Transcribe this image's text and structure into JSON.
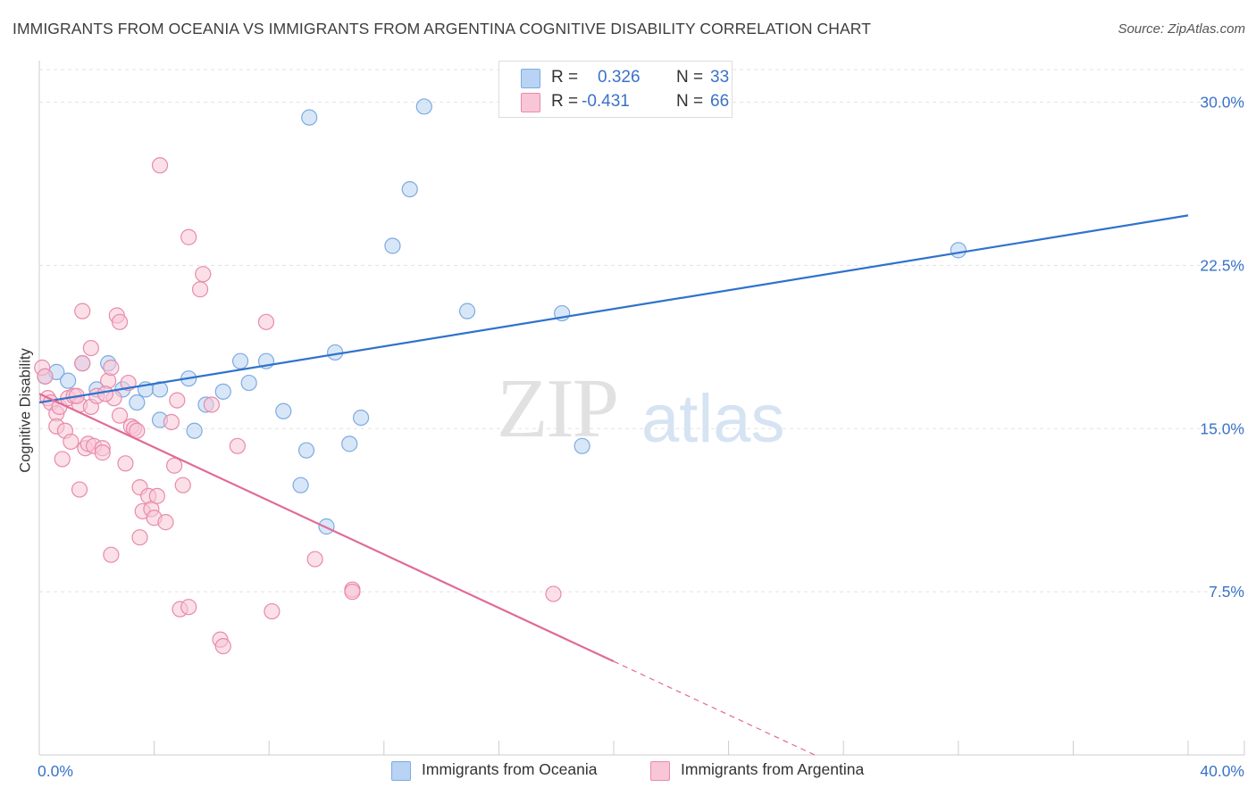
{
  "title": "IMMIGRANTS FROM OCEANIA VS IMMIGRANTS FROM ARGENTINA COGNITIVE DISABILITY CORRELATION CHART",
  "source": "Source: ZipAtlas.com",
  "watermark": {
    "zip": "ZIP",
    "atlas": "atlas"
  },
  "legend": {
    "r_label": "R =",
    "n_label": "N =",
    "rows": [
      {
        "r": "0.326",
        "n": "33",
        "color": "#b8d3f3",
        "border": "#7eaae0"
      },
      {
        "r": "-0.431",
        "n": "66",
        "color": "#f8c6d6",
        "border": "#e98aab"
      }
    ]
  },
  "bottom_legend": [
    {
      "label": "Immigrants from Oceania",
      "color": "#b8d3f3",
      "border": "#7eaae0"
    },
    {
      "label": "Immigrants from Argentina",
      "color": "#f8c6d6",
      "border": "#e98aab"
    }
  ],
  "chart_data": {
    "type": "scatter",
    "title": "IMMIGRANTS FROM OCEANIA VS IMMIGRANTS FROM ARGENTINA COGNITIVE DISABILITY CORRELATION CHART",
    "xlabel": "",
    "ylabel": "Cognitive Disability",
    "xlim": [
      0,
      40
    ],
    "ylim": [
      0,
      31.5
    ],
    "x_tick_labels": [
      "0.0%",
      "40.0%"
    ],
    "y_ticks": [
      7.5,
      15.0,
      22.5,
      30.0
    ],
    "y_tick_labels": [
      "7.5%",
      "15.0%",
      "22.5%",
      "30.0%"
    ],
    "grid": true,
    "legend_position": "top-center",
    "series": [
      {
        "name": "Immigrants from Oceania",
        "color": "#7eaae0",
        "fill": "#b8d3f3",
        "line_color": "#2f72cc",
        "trend": {
          "x": [
            0,
            40
          ],
          "y": [
            16.2,
            24.8
          ]
        },
        "points": [
          [
            0.2,
            17.4
          ],
          [
            0.6,
            17.6
          ],
          [
            1.0,
            17.2
          ],
          [
            1.5,
            18.0
          ],
          [
            2.0,
            16.8
          ],
          [
            2.4,
            18.0
          ],
          [
            2.9,
            16.8
          ],
          [
            3.4,
            16.2
          ],
          [
            3.7,
            16.8
          ],
          [
            4.2,
            16.8
          ],
          [
            4.2,
            15.4
          ],
          [
            5.2,
            17.3
          ],
          [
            5.4,
            14.9
          ],
          [
            5.8,
            16.1
          ],
          [
            6.4,
            16.7
          ],
          [
            7.0,
            18.1
          ],
          [
            7.3,
            17.1
          ],
          [
            7.9,
            18.1
          ],
          [
            8.5,
            15.8
          ],
          [
            9.1,
            12.4
          ],
          [
            9.4,
            29.3
          ],
          [
            9.3,
            14.0
          ],
          [
            10.0,
            10.5
          ],
          [
            10.3,
            18.5
          ],
          [
            10.8,
            14.3
          ],
          [
            11.2,
            15.5
          ],
          [
            12.3,
            23.4
          ],
          [
            12.9,
            26.0
          ],
          [
            13.4,
            29.8
          ],
          [
            14.9,
            20.4
          ],
          [
            18.2,
            20.3
          ],
          [
            18.9,
            14.2
          ],
          [
            32.0,
            23.2
          ]
        ]
      },
      {
        "name": "Immigrants from Argentina",
        "color": "#e98aab",
        "fill": "#f8c6d6",
        "line_color": "#e06a98",
        "trend": {
          "x": [
            0,
            20
          ],
          "y": [
            16.6,
            4.3
          ]
        },
        "trend_dashed": {
          "x": [
            20,
            27
          ],
          "y": [
            4.3,
            0.0
          ]
        },
        "points": [
          [
            0.1,
            17.8
          ],
          [
            0.2,
            17.4
          ],
          [
            0.3,
            16.4
          ],
          [
            0.4,
            16.2
          ],
          [
            0.6,
            15.7
          ],
          [
            0.6,
            15.1
          ],
          [
            0.7,
            16.0
          ],
          [
            0.8,
            13.6
          ],
          [
            0.9,
            14.9
          ],
          [
            1.0,
            16.4
          ],
          [
            1.1,
            14.4
          ],
          [
            1.2,
            16.5
          ],
          [
            1.4,
            16.1
          ],
          [
            1.4,
            12.2
          ],
          [
            1.5,
            18.0
          ],
          [
            1.5,
            20.4
          ],
          [
            1.6,
            14.1
          ],
          [
            1.7,
            14.3
          ],
          [
            1.8,
            16.0
          ],
          [
            1.8,
            18.7
          ],
          [
            1.9,
            14.2
          ],
          [
            2.0,
            16.5
          ],
          [
            2.2,
            14.1
          ],
          [
            2.2,
            13.9
          ],
          [
            2.4,
            17.2
          ],
          [
            2.5,
            17.8
          ],
          [
            2.5,
            9.2
          ],
          [
            2.6,
            16.4
          ],
          [
            2.7,
            20.2
          ],
          [
            2.8,
            15.6
          ],
          [
            2.8,
            19.9
          ],
          [
            3.0,
            13.4
          ],
          [
            3.1,
            17.1
          ],
          [
            3.2,
            15.1
          ],
          [
            3.3,
            15.0
          ],
          [
            3.4,
            14.9
          ],
          [
            3.5,
            10.0
          ],
          [
            3.5,
            12.3
          ],
          [
            3.6,
            11.2
          ],
          [
            3.8,
            11.9
          ],
          [
            3.9,
            11.3
          ],
          [
            4.0,
            10.9
          ],
          [
            4.1,
            11.9
          ],
          [
            4.2,
            27.1
          ],
          [
            4.4,
            10.7
          ],
          [
            4.6,
            15.3
          ],
          [
            4.7,
            13.3
          ],
          [
            4.8,
            16.3
          ],
          [
            4.9,
            6.7
          ],
          [
            5.0,
            12.4
          ],
          [
            5.2,
            23.8
          ],
          [
            5.2,
            6.8
          ],
          [
            5.6,
            21.4
          ],
          [
            5.7,
            22.1
          ],
          [
            6.0,
            16.1
          ],
          [
            6.3,
            5.3
          ],
          [
            6.4,
            5.0
          ],
          [
            6.9,
            14.2
          ],
          [
            7.9,
            19.9
          ],
          [
            8.1,
            6.6
          ],
          [
            9.6,
            9.0
          ],
          [
            10.9,
            7.6
          ],
          [
            10.9,
            7.5
          ],
          [
            17.9,
            7.4
          ],
          [
            2.3,
            16.6
          ],
          [
            1.3,
            16.5
          ]
        ]
      }
    ]
  }
}
